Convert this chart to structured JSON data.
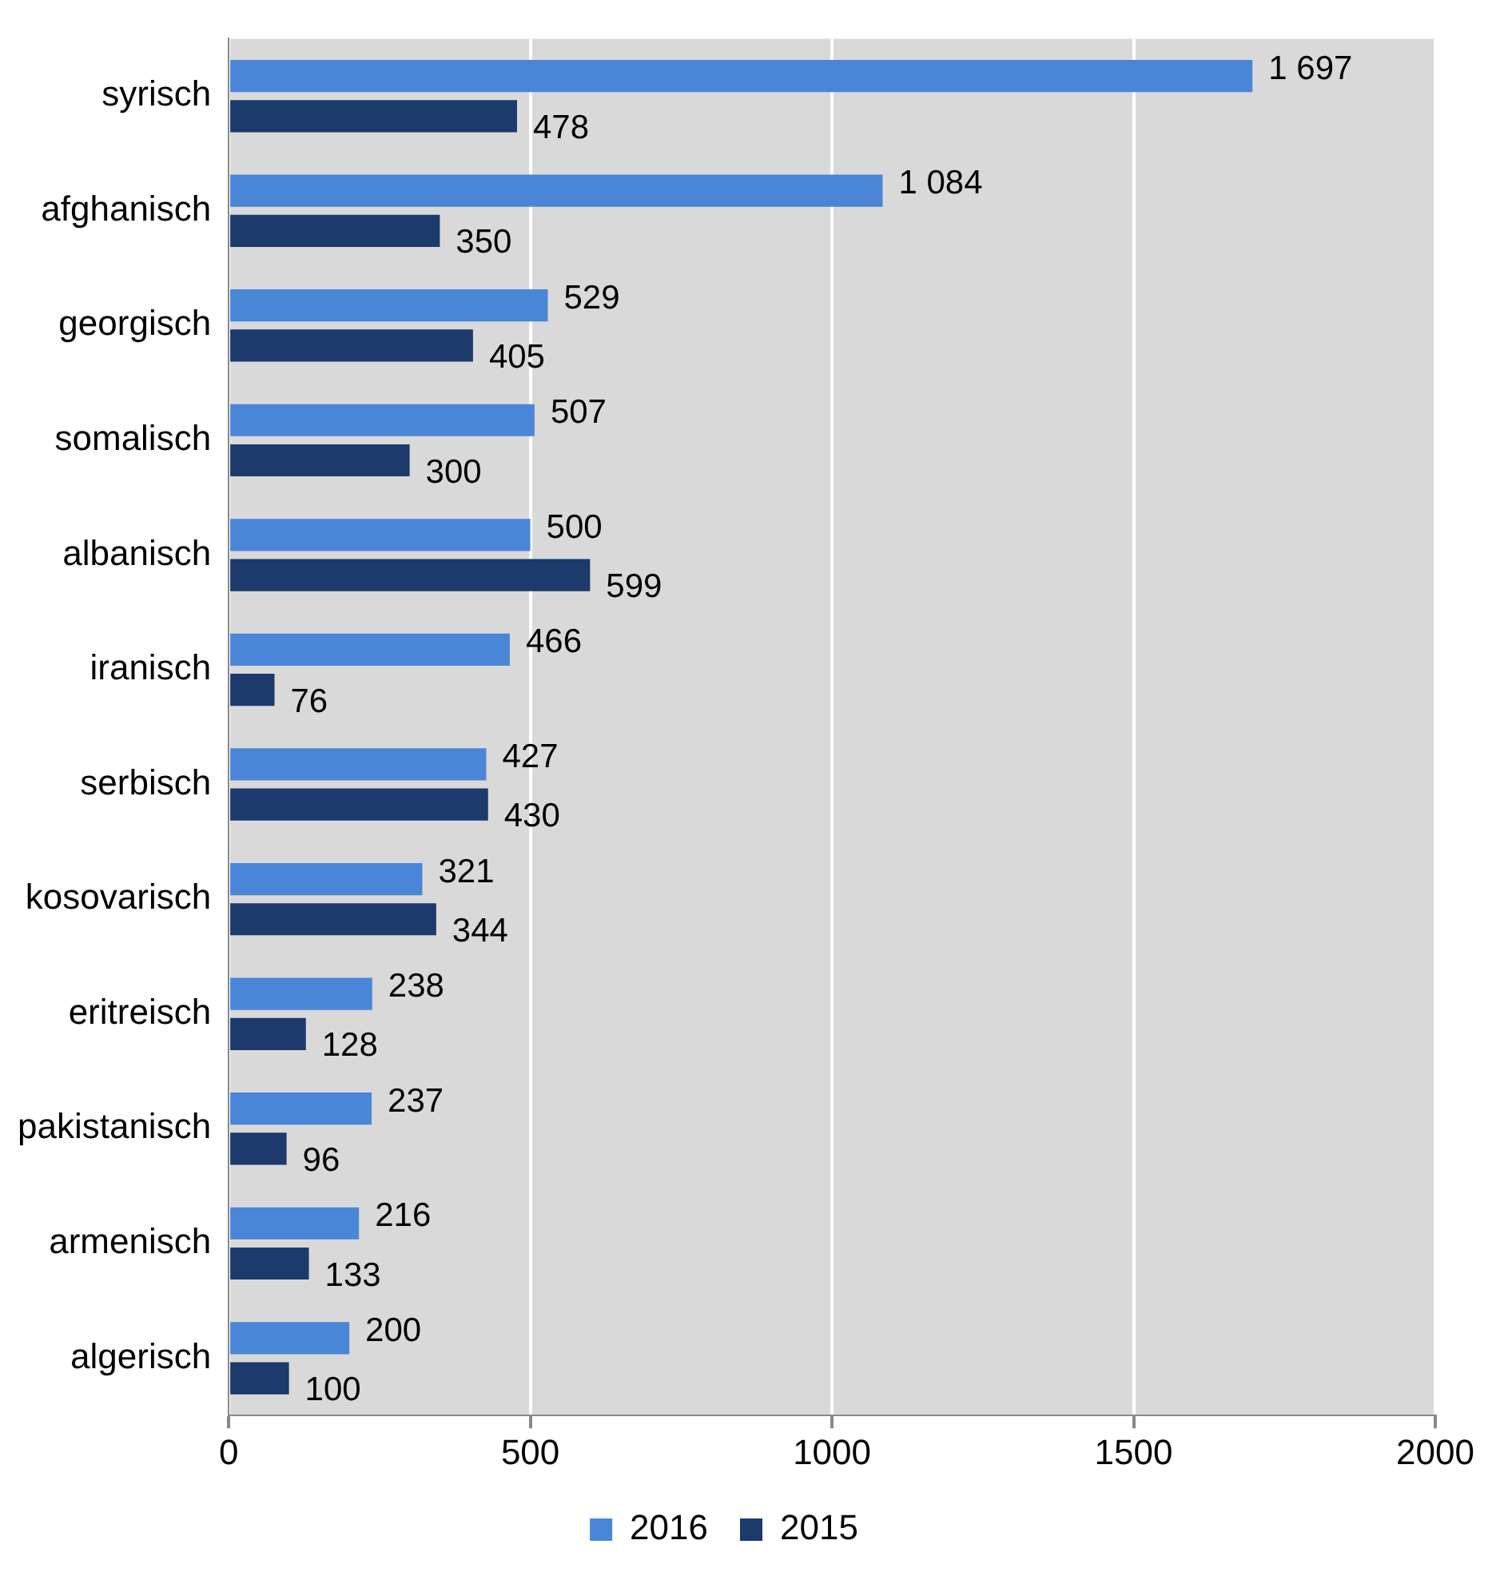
{
  "chart_data": {
    "type": "bar",
    "orientation": "horizontal",
    "categories": [
      "syrisch",
      "afghanisch",
      "georgisch",
      "somalisch",
      "albanisch",
      "iranisch",
      "serbisch",
      "kosovarisch",
      "eritreisch",
      "pakistanisch",
      "armenisch",
      "algerisch"
    ],
    "series": [
      {
        "name": "2016",
        "color": "#4a86d8",
        "values": [
          1697,
          1084,
          529,
          507,
          500,
          466,
          427,
          321,
          238,
          237,
          216,
          200
        ],
        "value_labels": [
          "1 697",
          "1 084",
          "529",
          "507",
          "500",
          "466",
          "427",
          "321",
          "238",
          "237",
          "216",
          "200"
        ]
      },
      {
        "name": "2015",
        "color": "#1c3a6b",
        "values": [
          478,
          350,
          405,
          300,
          599,
          76,
          430,
          344,
          128,
          96,
          133,
          100
        ],
        "value_labels": [
          "478",
          "350",
          "405",
          "300",
          "599",
          "76",
          "430",
          "344",
          "128",
          "96",
          "133",
          "100"
        ]
      }
    ],
    "xlim": [
      0,
      2000
    ],
    "xticks": [
      0,
      500,
      1000,
      1500,
      2000
    ],
    "grid": "x",
    "legend": "bottom"
  }
}
